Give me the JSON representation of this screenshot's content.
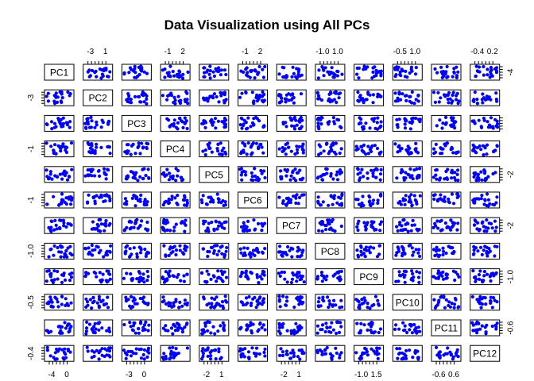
{
  "chart_data": {
    "type": "scatter",
    "title": "Data Visualization using All PCs",
    "variables": [
      "PC1",
      "PC2",
      "PC3",
      "PC4",
      "PC5",
      "PC6",
      "PC7",
      "PC8",
      "PC9",
      "PC10",
      "PC11",
      "PC12"
    ],
    "point_color": "#0000ff",
    "axis_ticks": {
      "top": [
        {
          "col": 2,
          "labels": [
            "-3",
            "1"
          ]
        },
        {
          "col": 4,
          "labels": [
            "-1",
            "2"
          ]
        },
        {
          "col": 6,
          "labels": [
            "-1",
            "2"
          ]
        },
        {
          "col": 8,
          "labels": [
            "-1.0",
            "1.0"
          ]
        },
        {
          "col": 10,
          "labels": [
            "-0.5",
            "1.0"
          ]
        },
        {
          "col": 12,
          "labels": [
            "-0.4",
            "0.2"
          ]
        }
      ],
      "bottom": [
        {
          "col": 1,
          "labels": [
            "-4",
            "0"
          ]
        },
        {
          "col": 3,
          "labels": [
            "-3",
            "0"
          ]
        },
        {
          "col": 5,
          "labels": [
            "-2",
            "1"
          ]
        },
        {
          "col": 7,
          "labels": [
            "-2",
            "1"
          ]
        },
        {
          "col": 9,
          "labels": [
            "-1.0",
            "1.5"
          ]
        },
        {
          "col": 11,
          "labels": [
            "-0.6",
            "0.6"
          ]
        }
      ],
      "left": [
        {
          "row": 2,
          "labels": [
            "-3"
          ]
        },
        {
          "row": 4,
          "labels": [
            "-1"
          ]
        },
        {
          "row": 6,
          "labels": [
            "-1"
          ]
        },
        {
          "row": 8,
          "labels": [
            "-1.0"
          ]
        },
        {
          "row": 10,
          "labels": [
            "-0.5"
          ]
        },
        {
          "row": 12,
          "labels": [
            "-0.4"
          ]
        }
      ],
      "right": [
        {
          "row": 1,
          "labels": [
            "-4"
          ]
        },
        {
          "row": 3,
          "labels": [
            ""
          ]
        },
        {
          "row": 5,
          "labels": [
            "-2"
          ]
        },
        {
          "row": 7,
          "labels": [
            "-2"
          ]
        },
        {
          "row": 9,
          "labels": [
            "-1.0"
          ]
        },
        {
          "row": 11,
          "labels": [
            "-0.6"
          ]
        }
      ]
    },
    "grid": false,
    "legend": "none"
  }
}
